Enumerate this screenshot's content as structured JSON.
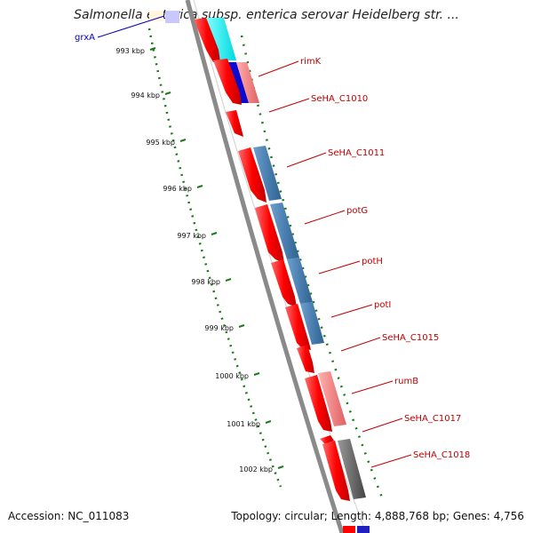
{
  "title": "Salmonella enterica subsp. enterica serovar Heidelberg str. ...",
  "footer": {
    "accession": "Accession: NC_011083",
    "summary": "Topology: circular; Length: 4,888,768 bp; Genes: 4,756"
  },
  "ticks": [
    "993 kbp",
    "994 kbp",
    "995 kbp",
    "996 kbp",
    "997 kbp",
    "998 kbp",
    "999 kbp",
    "1000 kbp",
    "1001 kbp",
    "1002 kbp"
  ],
  "genes": [
    {
      "label": "grxA",
      "color": "#0000c0"
    },
    {
      "label": "rimK",
      "color": "#c00000"
    },
    {
      "label": "SeHA_C1010",
      "color": "#c00000"
    },
    {
      "label": "SeHA_C1011",
      "color": "#c00000"
    },
    {
      "label": "potG",
      "color": "#c00000"
    },
    {
      "label": "potH",
      "color": "#c00000"
    },
    {
      "label": "potI",
      "color": "#c00000"
    },
    {
      "label": "SeHA_C1015",
      "color": "#c00000"
    },
    {
      "label": "rumB",
      "color": "#c00000"
    },
    {
      "label": "SeHA_C1017",
      "color": "#c00000"
    },
    {
      "label": "SeHA_C1018",
      "color": "#c00000"
    }
  ],
  "colors": {
    "cds": "#ff0000",
    "backbone": "#8a8a8a",
    "tick": "#1a7a1a",
    "blue_track": "#4a7fb0",
    "cyan_track": "#00e0e8",
    "pink_track": "#f08080",
    "gray_track": "#555555"
  }
}
